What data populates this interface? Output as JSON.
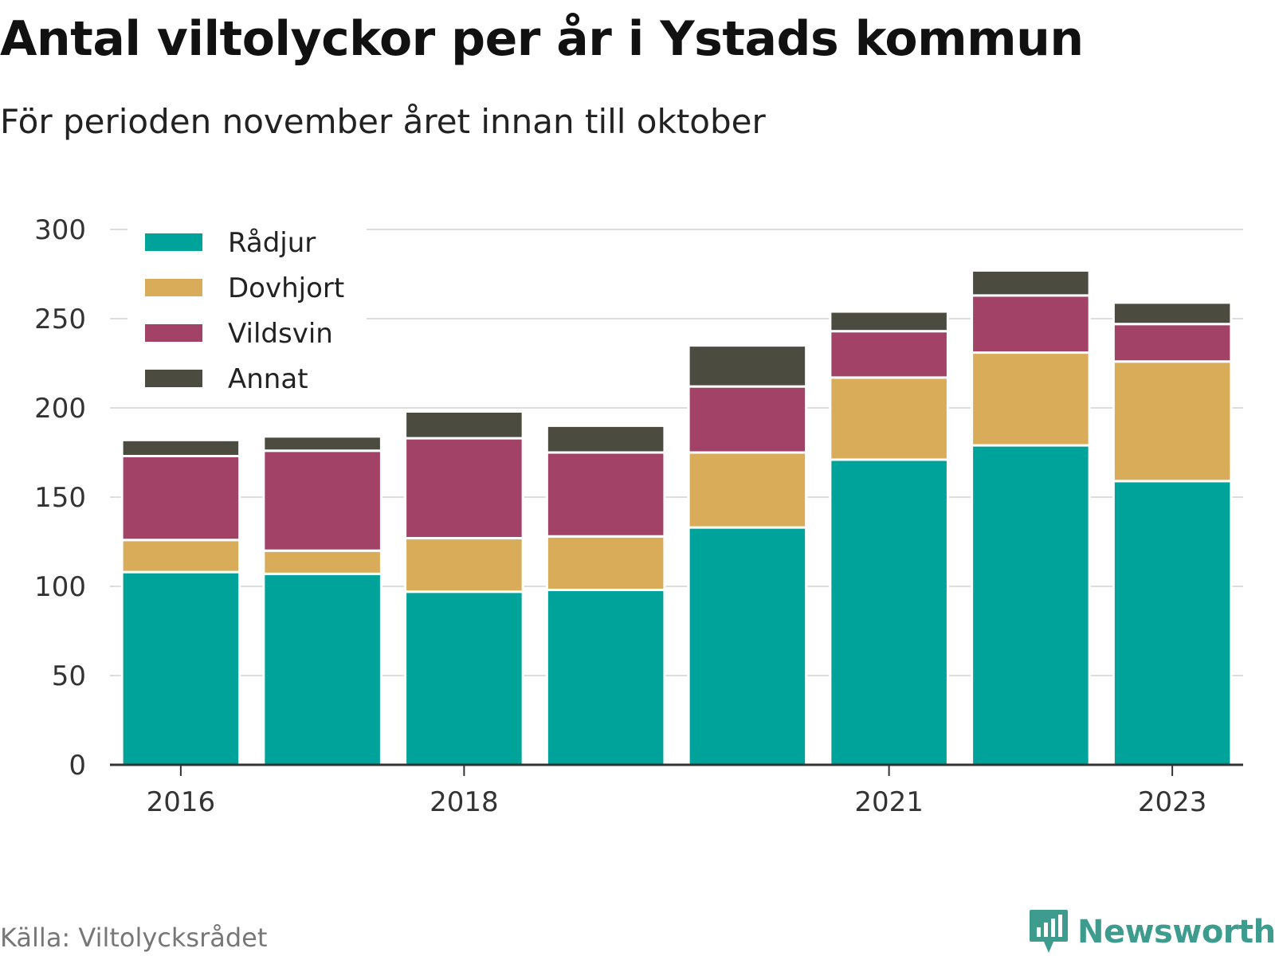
{
  "title": "Antal viltolyckor per år i Ystads kommun",
  "subtitle": "För perioden november året innan till oktober",
  "source": "Källa: Viltolycksrådet",
  "logo_text": "Newsworthy",
  "colors": {
    "Rådjur": "#00a39a",
    "Dovhjort": "#d8ac59",
    "Vildsvin": "#a24266",
    "Annat": "#4b4c3f"
  },
  "chart_data": {
    "type": "bar",
    "stacked": true,
    "categories": [
      "2016",
      "2017",
      "2018",
      "2019",
      "2020",
      "2021",
      "2022",
      "2023"
    ],
    "x_tick_labels": [
      "2016",
      "2018",
      "2021",
      "2023"
    ],
    "series": [
      {
        "name": "Rådjur",
        "values": [
          108,
          107,
          97,
          98,
          133,
          171,
          179,
          159
        ]
      },
      {
        "name": "Dovhjort",
        "values": [
          18,
          13,
          30,
          30,
          42,
          46,
          52,
          67
        ]
      },
      {
        "name": "Vildsvin",
        "values": [
          47,
          56,
          56,
          47,
          37,
          26,
          32,
          21
        ]
      },
      {
        "name": "Annat",
        "values": [
          9,
          8,
          15,
          15,
          23,
          11,
          14,
          12
        ]
      }
    ],
    "ylim": [
      0,
      300
    ],
    "y_ticks": [
      0,
      50,
      100,
      150,
      200,
      250,
      300
    ],
    "grid": true,
    "legend_position": "top-left"
  }
}
